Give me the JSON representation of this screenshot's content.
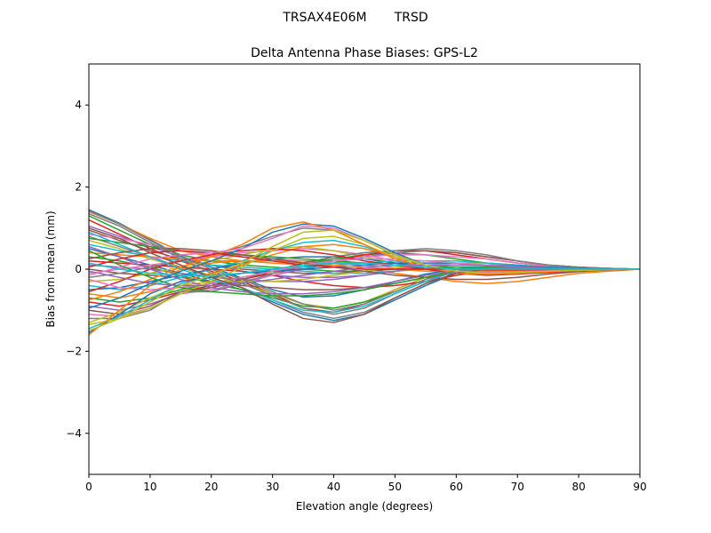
{
  "figure": {
    "suptitle": "TRSAX4E06M       TRSD"
  },
  "chart_data": {
    "type": "line",
    "title": "Delta Antenna Phase Biases: GPS-L2",
    "xlabel": "Elevation angle (degrees)",
    "ylabel": "Bias from mean (mm)",
    "xlim": [
      0,
      90
    ],
    "ylim": [
      -5,
      5
    ],
    "xticks": [
      0,
      10,
      20,
      30,
      40,
      50,
      60,
      70,
      80,
      90
    ],
    "xtick_labels": [
      "0",
      "10",
      "20",
      "30",
      "40",
      "50",
      "60",
      "70",
      "80",
      "90"
    ],
    "yticks": [
      -4,
      -2,
      0,
      2,
      4
    ],
    "ytick_labels": [
      "−4",
      "−2",
      "0",
      "2",
      "4"
    ],
    "grid": false,
    "legend": "none",
    "colors": [
      "#1f77b4",
      "#ff7f0e",
      "#2ca02c",
      "#d62728",
      "#9467bd",
      "#8c564b",
      "#e377c2",
      "#7f7f7f",
      "#bcbd22",
      "#17becf"
    ],
    "x": [
      0,
      5,
      10,
      15,
      20,
      25,
      30,
      35,
      40,
      45,
      50,
      55,
      60,
      65,
      70,
      75,
      80,
      85,
      90
    ],
    "series": [
      {
        "values": [
          1.45,
          1.12,
          0.72,
          0.32,
          0.05,
          -0.22,
          -0.5,
          -0.68,
          -0.65,
          -0.5,
          -0.3,
          -0.12,
          0.0,
          0.05,
          0.04,
          0.03,
          0.02,
          0.01,
          0.0
        ]
      },
      {
        "values": [
          1.4,
          1.1,
          0.75,
          0.45,
          0.3,
          0.2,
          0.15,
          0.1,
          0.05,
          0.0,
          -0.1,
          -0.2,
          -0.3,
          -0.35,
          -0.3,
          -0.2,
          -0.1,
          -0.05,
          0.0
        ]
      },
      {
        "values": [
          1.3,
          0.95,
          0.6,
          0.35,
          0.2,
          0.1,
          0.05,
          0.0,
          -0.05,
          -0.05,
          0.0,
          0.05,
          0.05,
          0.05,
          0.04,
          0.03,
          0.02,
          0.01,
          0.0
        ]
      },
      {
        "values": [
          1.2,
          0.85,
          0.5,
          0.2,
          -0.05,
          -0.3,
          -0.6,
          -0.95,
          -1.05,
          -0.85,
          -0.5,
          -0.2,
          0.0,
          0.05,
          0.05,
          0.04,
          0.02,
          0.01,
          0.0
        ]
      },
      {
        "values": [
          1.05,
          0.8,
          0.55,
          0.3,
          0.1,
          -0.05,
          -0.15,
          -0.2,
          -0.2,
          -0.15,
          -0.05,
          0.05,
          0.1,
          0.1,
          0.08,
          0.05,
          0.03,
          0.01,
          0.0
        ]
      },
      {
        "values": [
          0.95,
          0.7,
          0.45,
          0.25,
          0.1,
          0.0,
          -0.05,
          -0.1,
          -0.1,
          -0.05,
          0.0,
          0.05,
          0.05,
          0.05,
          0.04,
          0.03,
          0.02,
          0.01,
          0.0
        ]
      },
      {
        "values": [
          0.85,
          0.75,
          0.6,
          0.45,
          0.35,
          0.3,
          0.25,
          0.2,
          0.15,
          0.1,
          0.05,
          0.0,
          -0.05,
          -0.05,
          -0.05,
          -0.03,
          -0.02,
          -0.01,
          0.0
        ]
      },
      {
        "values": [
          0.8,
          0.55,
          0.3,
          0.05,
          -0.2,
          -0.45,
          -0.75,
          -1.05,
          -1.2,
          -1.05,
          -0.7,
          -0.35,
          -0.1,
          0.0,
          0.02,
          0.02,
          0.01,
          0.0,
          0.0
        ]
      },
      {
        "values": [
          0.7,
          0.5,
          0.25,
          0.05,
          -0.15,
          -0.35,
          -0.6,
          -0.85,
          -0.95,
          -0.8,
          -0.5,
          -0.2,
          0.0,
          0.05,
          0.04,
          0.03,
          0.02,
          0.01,
          0.0
        ]
      },
      {
        "values": [
          0.6,
          0.45,
          0.3,
          0.2,
          0.1,
          0.05,
          0.0,
          -0.05,
          -0.1,
          -0.1,
          -0.05,
          0.0,
          0.05,
          0.05,
          0.04,
          0.03,
          0.02,
          0.01,
          0.0
        ]
      },
      {
        "values": [
          0.5,
          0.3,
          0.1,
          -0.1,
          -0.3,
          -0.5,
          -0.8,
          -1.1,
          -1.25,
          -1.1,
          -0.75,
          -0.4,
          -0.1,
          0.0,
          0.02,
          0.02,
          0.01,
          0.0,
          0.0
        ]
      },
      {
        "values": [
          0.4,
          0.35,
          0.3,
          0.25,
          0.2,
          0.2,
          0.2,
          0.2,
          0.2,
          0.15,
          0.1,
          0.05,
          0.0,
          -0.05,
          -0.05,
          -0.03,
          -0.02,
          -0.01,
          0.0
        ]
      },
      {
        "values": [
          0.3,
          0.2,
          0.05,
          -0.15,
          -0.35,
          -0.5,
          -0.7,
          -0.9,
          -0.95,
          -0.8,
          -0.55,
          -0.25,
          0.0,
          0.05,
          0.05,
          0.04,
          0.02,
          0.01,
          0.0
        ]
      },
      {
        "values": [
          0.2,
          0.15,
          0.1,
          0.05,
          0.0,
          -0.05,
          -0.15,
          -0.3,
          -0.4,
          -0.45,
          -0.4,
          -0.3,
          -0.15,
          -0.05,
          0.0,
          0.02,
          0.01,
          0.0,
          0.0
        ]
      },
      {
        "values": [
          0.1,
          0.05,
          0.0,
          -0.1,
          -0.2,
          -0.25,
          -0.3,
          -0.3,
          -0.25,
          -0.15,
          -0.05,
          0.05,
          0.1,
          0.1,
          0.08,
          0.05,
          0.03,
          0.01,
          0.0
        ]
      },
      {
        "values": [
          0.0,
          -0.1,
          -0.15,
          -0.2,
          -0.3,
          -0.4,
          -0.45,
          -0.5,
          -0.5,
          -0.45,
          -0.35,
          -0.2,
          -0.1,
          0.0,
          0.02,
          0.02,
          0.01,
          0.0,
          0.0
        ]
      },
      {
        "values": [
          -0.1,
          0.0,
          0.1,
          0.2,
          0.3,
          0.4,
          0.45,
          0.5,
          0.45,
          0.35,
          0.2,
          0.05,
          -0.05,
          -0.1,
          -0.08,
          -0.05,
          -0.03,
          -0.01,
          0.0
        ]
      },
      {
        "values": [
          -0.2,
          -0.1,
          0.05,
          0.2,
          0.35,
          0.55,
          0.8,
          1.0,
          0.95,
          0.7,
          0.35,
          0.1,
          -0.05,
          -0.1,
          -0.08,
          -0.05,
          -0.03,
          -0.01,
          0.0
        ]
      },
      {
        "values": [
          -0.3,
          -0.25,
          -0.1,
          0.05,
          0.2,
          0.35,
          0.5,
          0.55,
          0.45,
          0.3,
          0.15,
          0.05,
          0.0,
          -0.05,
          -0.05,
          -0.03,
          -0.02,
          -0.01,
          0.0
        ]
      },
      {
        "values": [
          -0.4,
          -0.5,
          -0.4,
          -0.2,
          0.0,
          0.2,
          0.45,
          0.65,
          0.7,
          0.55,
          0.3,
          0.1,
          0.0,
          -0.05,
          -0.05,
          -0.03,
          -0.02,
          -0.01,
          0.0
        ]
      },
      {
        "values": [
          -0.5,
          -0.45,
          -0.3,
          -0.15,
          0.0,
          0.15,
          0.25,
          0.3,
          0.3,
          0.25,
          0.15,
          0.05,
          0.0,
          -0.05,
          -0.05,
          -0.03,
          -0.02,
          -0.01,
          0.0
        ]
      },
      {
        "values": [
          -0.6,
          -0.7,
          -0.55,
          -0.3,
          -0.1,
          0.1,
          0.35,
          0.55,
          0.6,
          0.5,
          0.3,
          0.1,
          0.0,
          -0.05,
          -0.05,
          -0.03,
          -0.02,
          -0.01,
          0.0
        ]
      },
      {
        "values": [
          -0.7,
          -0.8,
          -0.7,
          -0.5,
          -0.35,
          -0.2,
          -0.05,
          0.1,
          0.25,
          0.35,
          0.4,
          0.35,
          0.25,
          0.15,
          0.1,
          0.05,
          0.03,
          0.01,
          0.0
        ]
      },
      {
        "values": [
          -0.8,
          -0.9,
          -0.75,
          -0.55,
          -0.4,
          -0.25,
          -0.1,
          0.05,
          0.2,
          0.35,
          0.45,
          0.45,
          0.35,
          0.25,
          0.15,
          0.08,
          0.04,
          0.02,
          0.0
        ]
      },
      {
        "values": [
          -0.9,
          -1.0,
          -0.85,
          -0.6,
          -0.45,
          -0.3,
          -0.15,
          0.0,
          0.15,
          0.3,
          0.4,
          0.45,
          0.4,
          0.3,
          0.2,
          0.1,
          0.05,
          0.02,
          0.0
        ]
      },
      {
        "values": [
          -1.0,
          -1.1,
          -0.9,
          -0.55,
          -0.45,
          -0.25,
          -0.05,
          0.15,
          0.3,
          0.4,
          0.45,
          0.45,
          0.4,
          0.3,
          0.2,
          0.1,
          0.05,
          0.02,
          0.0
        ]
      },
      {
        "values": [
          -1.1,
          -1.15,
          -0.95,
          -0.6,
          -0.5,
          -0.35,
          -0.15,
          0.05,
          0.2,
          0.3,
          0.35,
          0.35,
          0.3,
          0.25,
          0.15,
          0.08,
          0.04,
          0.02,
          0.0
        ]
      },
      {
        "values": [
          -1.2,
          -1.2,
          -1.0,
          -0.55,
          -0.55,
          -0.35,
          -0.1,
          0.1,
          0.3,
          0.4,
          0.45,
          0.5,
          0.45,
          0.35,
          0.2,
          0.1,
          0.05,
          0.02,
          0.0
        ]
      },
      {
        "values": [
          -1.3,
          -1.05,
          -0.7,
          -0.4,
          -0.3,
          -0.3,
          -0.3,
          -0.25,
          -0.15,
          -0.05,
          0.05,
          0.1,
          0.15,
          0.15,
          0.1,
          0.05,
          0.03,
          0.01,
          0.0
        ]
      },
      {
        "values": [
          -1.45,
          -1.15,
          -0.75,
          -0.35,
          -0.2,
          -0.1,
          0.0,
          0.05,
          0.1,
          0.15,
          0.2,
          0.2,
          0.2,
          0.15,
          0.1,
          0.05,
          0.03,
          0.01,
          0.0
        ]
      },
      {
        "values": [
          -1.55,
          -1.1,
          -0.6,
          -0.3,
          -0.2,
          -0.1,
          -0.05,
          0.0,
          0.05,
          0.1,
          0.15,
          0.15,
          0.15,
          0.1,
          0.08,
          0.05,
          0.03,
          0.01,
          0.0
        ]
      },
      {
        "values": [
          -1.6,
          -1.0,
          -0.4,
          0.0,
          0.15,
          0.2,
          0.2,
          0.15,
          0.1,
          0.05,
          0.0,
          -0.05,
          -0.05,
          -0.05,
          -0.04,
          -0.03,
          -0.02,
          -0.01,
          0.0
        ]
      },
      {
        "values": [
          0.75,
          0.65,
          0.55,
          0.45,
          0.4,
          0.35,
          0.3,
          0.25,
          0.2,
          0.15,
          0.1,
          0.05,
          0.05,
          0.03,
          0.02,
          0.01,
          0.01,
          0.0,
          0.0
        ]
      },
      {
        "values": [
          -0.55,
          -0.3,
          0.0,
          0.2,
          0.35,
          0.45,
          0.5,
          0.45,
          0.35,
          0.2,
          0.1,
          0.0,
          -0.1,
          -0.15,
          -0.12,
          -0.08,
          -0.04,
          -0.02,
          0.0
        ]
      },
      {
        "values": [
          0.55,
          0.3,
          0.0,
          -0.25,
          -0.45,
          -0.55,
          -0.6,
          -0.6,
          -0.55,
          -0.45,
          -0.3,
          -0.15,
          -0.05,
          0.0,
          0.02,
          0.02,
          0.01,
          0.0,
          0.0
        ]
      },
      {
        "values": [
          0.25,
          0.4,
          0.5,
          0.5,
          0.45,
          0.35,
          0.25,
          0.15,
          0.05,
          -0.05,
          -0.15,
          -0.2,
          -0.25,
          -0.25,
          -0.2,
          -0.12,
          -0.06,
          -0.02,
          0.0
        ]
      },
      {
        "values": [
          -0.25,
          -0.45,
          -0.5,
          -0.45,
          -0.35,
          -0.2,
          -0.05,
          0.1,
          0.2,
          0.25,
          0.25,
          0.2,
          0.15,
          0.1,
          0.06,
          0.03,
          0.02,
          0.01,
          0.0
        ]
      },
      {
        "values": [
          1.35,
          1.05,
          0.65,
          0.25,
          -0.1,
          -0.35,
          -0.65,
          -0.95,
          -1.1,
          -0.95,
          -0.6,
          -0.3,
          -0.05,
          0.02,
          0.03,
          0.02,
          0.01,
          0.0,
          0.0
        ]
      },
      {
        "values": [
          -1.35,
          -1.2,
          -0.95,
          -0.6,
          -0.3,
          0.05,
          0.45,
          0.75,
          0.8,
          0.6,
          0.3,
          0.1,
          -0.05,
          -0.1,
          -0.08,
          -0.05,
          -0.03,
          -0.01,
          0.0
        ]
      },
      {
        "values": [
          0.9,
          0.6,
          0.3,
          0.0,
          -0.25,
          -0.45,
          -0.75,
          -1.0,
          -1.05,
          -0.9,
          -0.6,
          -0.3,
          -0.05,
          0.02,
          0.03,
          0.02,
          0.01,
          0.0,
          0.0
        ]
      },
      {
        "values": [
          -0.95,
          -0.7,
          -0.35,
          -0.05,
          0.2,
          0.5,
          0.9,
          1.1,
          1.05,
          0.75,
          0.4,
          0.1,
          -0.05,
          -0.1,
          -0.08,
          -0.05,
          -0.03,
          -0.01,
          0.0
        ]
      },
      {
        "values": [
          -0.75,
          -0.55,
          -0.25,
          0.05,
          0.3,
          0.6,
          1.0,
          1.15,
          0.95,
          0.6,
          0.25,
          0.05,
          -0.1,
          -0.12,
          -0.1,
          -0.06,
          -0.03,
          -0.01,
          0.0
        ]
      },
      {
        "values": [
          0.45,
          0.1,
          -0.2,
          -0.45,
          -0.55,
          -0.6,
          -0.65,
          -0.65,
          -0.6,
          -0.5,
          -0.35,
          -0.2,
          -0.05,
          0.02,
          0.03,
          0.02,
          0.01,
          0.0,
          0.0
        ]
      },
      {
        "values": [
          0.05,
          0.25,
          0.4,
          0.45,
          0.4,
          0.3,
          0.2,
          0.1,
          0.05,
          0.0,
          0.0,
          0.0,
          0.0,
          -0.02,
          -0.02,
          -0.02,
          -0.01,
          0.0,
          0.0
        ]
      },
      {
        "values": [
          -0.05,
          -0.2,
          -0.35,
          -0.4,
          -0.4,
          -0.35,
          -0.25,
          -0.15,
          -0.05,
          0.05,
          0.1,
          0.1,
          0.1,
          0.08,
          0.05,
          0.03,
          0.02,
          0.01,
          0.0
        ]
      },
      {
        "values": [
          1.0,
          0.75,
          0.4,
          0.1,
          -0.2,
          -0.45,
          -0.85,
          -1.2,
          -1.3,
          -1.1,
          -0.7,
          -0.35,
          -0.1,
          0.0,
          0.02,
          0.02,
          0.01,
          0.0,
          0.0
        ]
      },
      {
        "values": [
          -0.15,
          0.05,
          0.25,
          0.35,
          0.4,
          0.5,
          0.75,
          1.05,
          1.0,
          0.7,
          0.35,
          0.1,
          -0.05,
          -0.08,
          -0.06,
          -0.04,
          -0.02,
          -0.01,
          0.0
        ]
      },
      {
        "values": [
          1.42,
          1.1,
          0.7,
          0.3,
          0.0,
          -0.25,
          -0.55,
          -0.85,
          -1.0,
          -0.85,
          -0.55,
          -0.25,
          -0.05,
          0.02,
          0.03,
          0.02,
          0.01,
          0.0,
          0.0
        ]
      },
      {
        "values": [
          -1.5,
          -1.2,
          -0.8,
          -0.4,
          -0.15,
          0.15,
          0.55,
          0.9,
          0.95,
          0.7,
          0.35,
          0.1,
          -0.05,
          -0.1,
          -0.08,
          -0.05,
          -0.03,
          -0.01,
          0.0
        ]
      },
      {
        "values": [
          0.15,
          0.0,
          -0.1,
          -0.15,
          -0.15,
          -0.1,
          0.0,
          0.1,
          0.15,
          0.15,
          0.1,
          0.05,
          0.0,
          0.0,
          0.0,
          0.0,
          0.0,
          0.0,
          0.0
        ]
      }
    ]
  }
}
